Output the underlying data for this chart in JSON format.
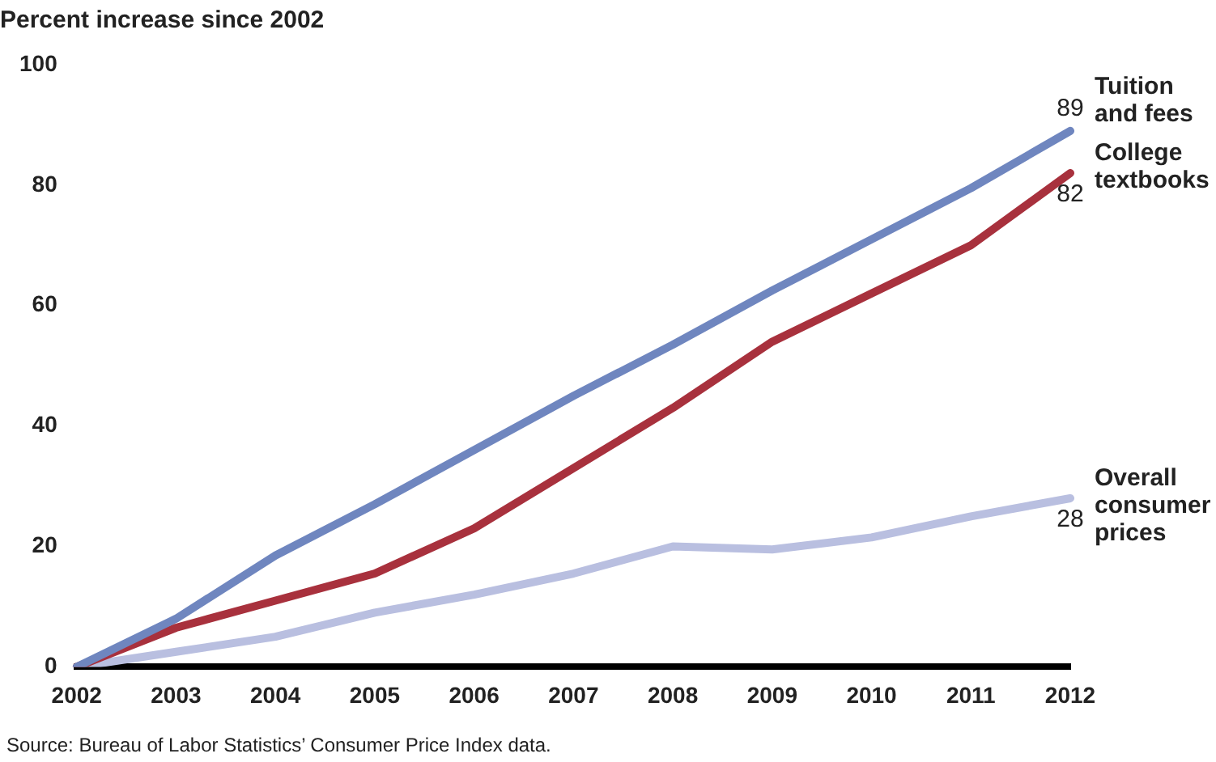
{
  "chart_data": {
    "type": "line",
    "title": "Percent increase since 2002",
    "categories": [
      "2002",
      "2003",
      "2004",
      "2005",
      "2006",
      "2007",
      "2008",
      "2009",
      "2010",
      "2011",
      "2012"
    ],
    "series": [
      {
        "name": "Tuition and fees",
        "color": "#6f86bf",
        "values": [
          0,
          8,
          18.5,
          27,
          36,
          45,
          53.5,
          62.5,
          71,
          79.5,
          89
        ],
        "value_labels": [
          null,
          null,
          null,
          null,
          null,
          null,
          null,
          null,
          null,
          null,
          "89"
        ]
      },
      {
        "name": "College textbooks",
        "color": "#a8313d",
        "values": [
          0,
          6.5,
          11,
          15.5,
          23,
          33,
          43,
          54,
          62,
          70,
          82
        ],
        "value_labels": [
          null,
          null,
          null,
          null,
          null,
          null,
          null,
          null,
          null,
          null,
          "82"
        ]
      },
      {
        "name": "Overall consumer prices",
        "color": "#b9bfe0",
        "values": [
          0,
          2.5,
          5,
          9,
          12,
          15.5,
          20,
          19.5,
          21.5,
          25,
          28
        ],
        "value_labels": [
          null,
          null,
          null,
          null,
          null,
          null,
          null,
          null,
          null,
          null,
          "28"
        ]
      }
    ],
    "ylim": [
      0,
      100
    ],
    "yticks": [
      0,
      20,
      40,
      60,
      80,
      100
    ],
    "grid": false,
    "legend": false,
    "marker": "none",
    "line_style": "solid",
    "annotations": [
      "Source: Bureau of Labor Statistics’ Consumer Price Index data."
    ]
  }
}
